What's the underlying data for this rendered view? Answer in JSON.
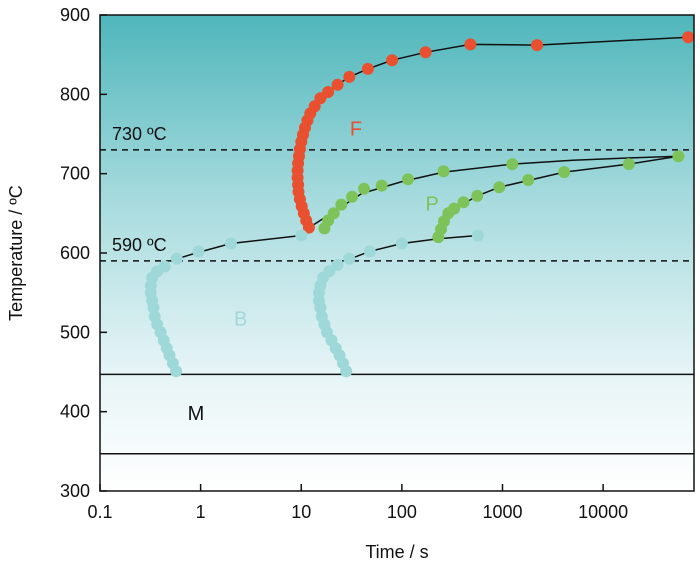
{
  "chart_data": {
    "type": "scatter",
    "title": "",
    "xlabel": "Time / s",
    "ylabel": "Temperature / ºC",
    "xscale": "log",
    "xlim": [
      0.1,
      80000
    ],
    "ylim": [
      300,
      900
    ],
    "grid": false,
    "legend": "none",
    "xticks": [
      {
        "value": 0.1,
        "label": "0.1"
      },
      {
        "value": 1,
        "label": "1"
      },
      {
        "value": 10,
        "label": "10"
      },
      {
        "value": 100,
        "label": "100"
      },
      {
        "value": 1000,
        "label": "1000"
      },
      {
        "value": 10000,
        "label": "10000"
      }
    ],
    "yticks": [
      {
        "value": 300,
        "label": "300"
      },
      {
        "value": 400,
        "label": "400"
      },
      {
        "value": 500,
        "label": "500"
      },
      {
        "value": 600,
        "label": "600"
      },
      {
        "value": 700,
        "label": "700"
      },
      {
        "value": 800,
        "label": "800"
      },
      {
        "value": 900,
        "label": "900"
      }
    ],
    "colors": {
      "ferrite": "#e8502f",
      "pearlite": "#7dc35a",
      "bainite": "#9fd8d9",
      "region_top": "#55b9bd",
      "line": "#111111"
    },
    "reference_lines": [
      {
        "y": 730,
        "style": "dashed",
        "label": "730 ºC"
      },
      {
        "y": 590,
        "style": "dashed",
        "label": "590 ºC"
      },
      {
        "y": 447,
        "style": "solid",
        "label": ""
      },
      {
        "y": 347,
        "style": "solid",
        "label": ""
      }
    ],
    "region_labels": [
      {
        "text": "F",
        "x": 35,
        "y": 755,
        "color": "#e8502f"
      },
      {
        "text": "P",
        "x": 200,
        "y": 660,
        "color": "#7dc35a"
      },
      {
        "text": "B",
        "x": 2.5,
        "y": 515,
        "color": "#9fd8d9"
      },
      {
        "text": "M",
        "x": 0.9,
        "y": 396,
        "color": "#111111"
      }
    ],
    "series": [
      {
        "id": "ferrite",
        "color": "#e8502f",
        "points": [
          [
            11.9,
            632
          ],
          [
            11.2,
            641
          ],
          [
            10.6,
            650
          ],
          [
            10.1,
            659
          ],
          [
            9.7,
            668
          ],
          [
            9.4,
            677
          ],
          [
            9.3,
            686
          ],
          [
            9.2,
            695
          ],
          [
            9.2,
            704
          ],
          [
            9.3,
            713
          ],
          [
            9.5,
            722
          ],
          [
            9.7,
            731
          ],
          [
            10.0,
            740
          ],
          [
            10.4,
            749
          ],
          [
            10.9,
            758
          ],
          [
            11.5,
            767
          ],
          [
            12.3,
            776
          ],
          [
            13.6,
            785
          ],
          [
            15.5,
            795
          ],
          [
            18.5,
            803
          ],
          [
            23,
            812
          ],
          [
            30,
            822
          ],
          [
            46,
            832
          ],
          [
            80,
            843
          ],
          [
            172,
            853
          ],
          [
            480,
            863
          ],
          [
            2200,
            862
          ],
          [
            70000,
            872
          ]
        ]
      },
      {
        "id": "pearlite-1",
        "color": "#7dc35a",
        "points": [
          [
            17,
            631
          ],
          [
            18.5,
            641
          ],
          [
            21,
            650
          ],
          [
            25,
            661
          ],
          [
            32,
            671
          ],
          [
            42,
            681
          ],
          [
            63,
            685
          ],
          [
            115,
            693
          ],
          [
            260,
            703
          ],
          [
            1250,
            712
          ]
        ]
      },
      {
        "id": "pearlite-2",
        "color": "#7dc35a",
        "points": [
          [
            230,
            620
          ],
          [
            245,
            630
          ],
          [
            262,
            640
          ],
          [
            290,
            650
          ],
          [
            330,
            656
          ],
          [
            410,
            664
          ],
          [
            560,
            672
          ],
          [
            930,
            683
          ],
          [
            1800,
            692
          ],
          [
            4100,
            702
          ],
          [
            18000,
            712
          ],
          [
            56000,
            722
          ]
        ]
      },
      {
        "id": "bainite-1",
        "color": "#9fd8d9",
        "points": [
          [
            0.57,
            451
          ],
          [
            0.53,
            461
          ],
          [
            0.49,
            471
          ],
          [
            0.46,
            480
          ],
          [
            0.43,
            490
          ],
          [
            0.4,
            500
          ],
          [
            0.37,
            510
          ],
          [
            0.35,
            520
          ],
          [
            0.34,
            531
          ],
          [
            0.33,
            540
          ],
          [
            0.32,
            550
          ],
          [
            0.32,
            559
          ],
          [
            0.33,
            569
          ],
          [
            0.37,
            577
          ],
          [
            0.44,
            583
          ],
          [
            0.58,
            593
          ],
          [
            0.95,
            602
          ],
          [
            2.0,
            612
          ],
          [
            10.0,
            622
          ]
        ]
      },
      {
        "id": "bainite-2",
        "color": "#9fd8d9",
        "points": [
          [
            28,
            451
          ],
          [
            26,
            461
          ],
          [
            24,
            471
          ],
          [
            22,
            480
          ],
          [
            20,
            490
          ],
          [
            18,
            500
          ],
          [
            17,
            510
          ],
          [
            16,
            520
          ],
          [
            15.5,
            531
          ],
          [
            15,
            540
          ],
          [
            15,
            550
          ],
          [
            15.5,
            559
          ],
          [
            16.5,
            569
          ],
          [
            19,
            577
          ],
          [
            23,
            585
          ],
          [
            30,
            593
          ],
          [
            48,
            602
          ],
          [
            100,
            612
          ],
          [
            570,
            622
          ]
        ]
      }
    ],
    "fit_lines": [
      {
        "points": [
          [
            0.5,
            590
          ],
          [
            0.9,
            600
          ],
          [
            2,
            612
          ],
          [
            10,
            622
          ]
        ]
      },
      {
        "points": [
          [
            12,
            632
          ],
          [
            40,
            675
          ],
          [
            100,
            690
          ],
          [
            260,
            702
          ],
          [
            1250,
            712
          ],
          [
            5000,
            717
          ],
          [
            20000,
            720
          ],
          [
            56000,
            722
          ]
        ]
      },
      {
        "points": [
          [
            27,
            590
          ],
          [
            48,
            602
          ],
          [
            100,
            612
          ],
          [
            230,
            618
          ],
          [
            570,
            622
          ]
        ]
      },
      {
        "points": [
          [
            230,
            620
          ],
          [
            300,
            652
          ],
          [
            560,
            672
          ],
          [
            930,
            683
          ],
          [
            4100,
            702
          ],
          [
            18000,
            712
          ],
          [
            56000,
            722
          ]
        ]
      },
      {
        "points": [
          [
            11.9,
            632
          ],
          [
            11.2,
            641
          ],
          [
            10.6,
            650
          ],
          [
            10.1,
            659
          ],
          [
            9.7,
            668
          ],
          [
            9.4,
            677
          ],
          [
            9.3,
            686
          ],
          [
            9.2,
            695
          ],
          [
            9.2,
            704
          ],
          [
            9.3,
            713
          ],
          [
            9.5,
            722
          ],
          [
            9.7,
            731
          ],
          [
            10.0,
            740
          ],
          [
            10.4,
            749
          ],
          [
            10.9,
            758
          ],
          [
            11.5,
            767
          ],
          [
            12.3,
            776
          ],
          [
            13.6,
            785
          ],
          [
            15.5,
            795
          ],
          [
            18.5,
            803
          ],
          [
            23,
            812
          ],
          [
            30,
            822
          ],
          [
            46,
            832
          ],
          [
            80,
            843
          ],
          [
            172,
            853
          ],
          [
            480,
            863
          ],
          [
            2200,
            862
          ],
          [
            70000,
            872
          ]
        ]
      }
    ]
  }
}
